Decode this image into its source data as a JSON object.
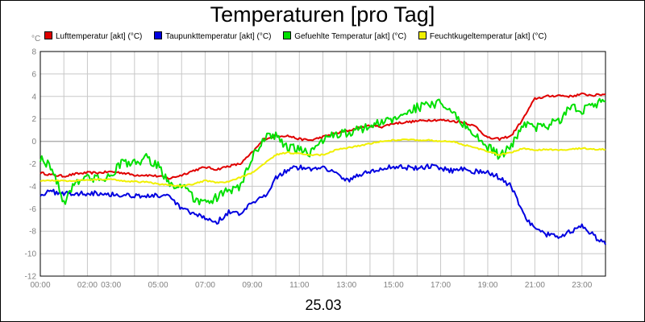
{
  "chart_data": {
    "type": "line",
    "title": "Temperaturen [pro Tag]",
    "ylabel": "°C",
    "xlabel": "25.03",
    "ylim": [
      -12,
      8
    ],
    "yticks": [
      8,
      6,
      4,
      2,
      0,
      -2,
      -4,
      -6,
      -8,
      -10,
      -12
    ],
    "xlim": [
      0,
      24
    ],
    "xticks": [
      {
        "hour": 0,
        "label": "00:00"
      },
      {
        "hour": 2,
        "label": "02:00"
      },
      {
        "hour": 3,
        "label": "03:00"
      },
      {
        "hour": 5,
        "label": "05:00"
      },
      {
        "hour": 7,
        "label": "07:00"
      },
      {
        "hour": 9,
        "label": "09:00"
      },
      {
        "hour": 11,
        "label": "11:00"
      },
      {
        "hour": 13,
        "label": "13:00"
      },
      {
        "hour": 15,
        "label": "15:00"
      },
      {
        "hour": 17,
        "label": "17:00"
      },
      {
        "hour": 19,
        "label": "19:00"
      },
      {
        "hour": 21,
        "label": "21:00"
      },
      {
        "hour": 23,
        "label": "23:00"
      }
    ],
    "grid": true,
    "legend_position": "top",
    "x_unit": "hour",
    "series": [
      {
        "name": "Lufttemperatur [akt] (°C)",
        "color": "#e00000",
        "x": [
          0,
          0.5,
          1,
          1.5,
          2,
          2.5,
          3,
          3.5,
          4,
          4.5,
          5,
          5.5,
          6,
          6.5,
          7,
          7.5,
          8,
          8.5,
          9,
          9.5,
          10,
          10.5,
          11,
          11.5,
          12,
          12.5,
          13,
          13.5,
          14,
          14.5,
          15,
          15.5,
          16,
          16.5,
          17,
          17.5,
          18,
          18.5,
          19,
          19.5,
          20,
          20.5,
          21,
          21.5,
          22,
          22.5,
          23,
          23.5,
          24
        ],
        "y": [
          -2.8,
          -3.0,
          -3.1,
          -2.9,
          -2.8,
          -2.8,
          -2.7,
          -2.8,
          -3.0,
          -3.0,
          -3.1,
          -3.3,
          -3.0,
          -2.6,
          -2.3,
          -2.5,
          -2.2,
          -2.0,
          -1.0,
          0.2,
          0.5,
          0.5,
          0.2,
          0.1,
          0.4,
          0.7,
          0.9,
          1.2,
          1.4,
          1.3,
          1.6,
          1.7,
          1.8,
          1.9,
          1.9,
          1.8,
          1.7,
          1.3,
          0.3,
          0.2,
          0.5,
          2.0,
          3.8,
          4.0,
          4.1,
          4.0,
          4.2,
          4.1,
          4.2
        ]
      },
      {
        "name": "Taupunkttemperatur [akt] (°C)",
        "color": "#0000e0",
        "x": [
          0,
          0.5,
          1,
          1.5,
          2,
          2.5,
          3,
          3.5,
          4,
          4.5,
          5,
          5.5,
          6,
          6.5,
          7,
          7.5,
          8,
          8.5,
          9,
          9.5,
          10,
          10.5,
          11,
          11.5,
          12,
          12.5,
          13,
          13.5,
          14,
          14.5,
          15,
          15.5,
          16,
          16.5,
          17,
          17.5,
          18,
          18.5,
          19,
          19.5,
          20,
          20.5,
          21,
          21.5,
          22,
          22.5,
          23,
          23.5,
          24
        ],
        "y": [
          -4.7,
          -4.5,
          -4.6,
          -4.7,
          -4.6,
          -4.6,
          -4.7,
          -4.8,
          -4.8,
          -4.9,
          -4.8,
          -5.0,
          -6.0,
          -6.5,
          -6.8,
          -7.2,
          -6.3,
          -6.5,
          -5.5,
          -5.0,
          -3.2,
          -2.5,
          -2.3,
          -2.5,
          -2.2,
          -2.8,
          -3.5,
          -3.0,
          -2.7,
          -2.5,
          -2.2,
          -2.3,
          -2.4,
          -2.2,
          -2.4,
          -2.6,
          -2.4,
          -2.7,
          -2.8,
          -3.2,
          -4.0,
          -6.5,
          -7.8,
          -8.3,
          -8.5,
          -8.0,
          -7.6,
          -8.4,
          -9.2
        ]
      },
      {
        "name": "Gefuehlte Temperatur [akt] (°C)",
        "color": "#00e000",
        "x": [
          0,
          0.5,
          1,
          1.5,
          2,
          2.5,
          3,
          3.5,
          4,
          4.5,
          5,
          5.5,
          6,
          6.5,
          7,
          7.5,
          8,
          8.5,
          9,
          9.5,
          10,
          10.5,
          11,
          11.5,
          12,
          12.5,
          13,
          13.5,
          14,
          14.5,
          15,
          15.5,
          16,
          16.5,
          17,
          17.5,
          18,
          18.5,
          19,
          19.5,
          20,
          20.5,
          21,
          21.5,
          22,
          22.5,
          23,
          23.5,
          24
        ],
        "y": [
          -1.5,
          -2.3,
          -5.5,
          -3.5,
          -3.2,
          -3.4,
          -3.0,
          -1.8,
          -2.0,
          -1.5,
          -2.2,
          -3.8,
          -4.0,
          -5.0,
          -5.6,
          -5.0,
          -4.4,
          -4.0,
          -1.5,
          0.3,
          0.5,
          -0.5,
          -0.8,
          -1.0,
          0.2,
          0.5,
          0.8,
          1.0,
          1.5,
          1.6,
          2.0,
          2.6,
          3.0,
          3.2,
          3.4,
          2.5,
          1.5,
          0.5,
          -0.5,
          -1.3,
          -0.5,
          1.6,
          1.2,
          1.4,
          1.8,
          3.0,
          2.8,
          3.3,
          3.6
        ]
      },
      {
        "name": "Feuchtkugeltemperatur [akt] (°C)",
        "color": "#f0f000",
        "x": [
          0,
          0.5,
          1,
          1.5,
          2,
          2.5,
          3,
          3.5,
          4,
          4.5,
          5,
          5.5,
          6,
          6.5,
          7,
          7.5,
          8,
          8.5,
          9,
          9.5,
          10,
          10.5,
          11,
          11.5,
          12,
          12.5,
          13,
          13.5,
          14,
          14.5,
          15,
          15.5,
          16,
          16.5,
          17,
          17.5,
          18,
          18.5,
          19,
          19.5,
          20,
          20.5,
          21,
          21.5,
          22,
          22.5,
          23,
          23.5,
          24
        ],
        "y": [
          -3.5,
          -3.5,
          -3.5,
          -3.5,
          -3.4,
          -3.4,
          -3.4,
          -3.5,
          -3.6,
          -3.6,
          -3.8,
          -3.9,
          -4.0,
          -3.8,
          -3.5,
          -3.7,
          -3.6,
          -3.2,
          -2.8,
          -2.0,
          -1.2,
          -1.0,
          -1.1,
          -1.2,
          -1.2,
          -0.8,
          -0.6,
          -0.4,
          -0.2,
          0.0,
          0.1,
          0.2,
          0.1,
          0.1,
          0.0,
          0.0,
          -0.3,
          -0.6,
          -0.9,
          -1.2,
          -1.0,
          -0.6,
          -0.8,
          -0.7,
          -0.8,
          -0.7,
          -0.6,
          -0.7,
          -0.7
        ]
      }
    ]
  }
}
